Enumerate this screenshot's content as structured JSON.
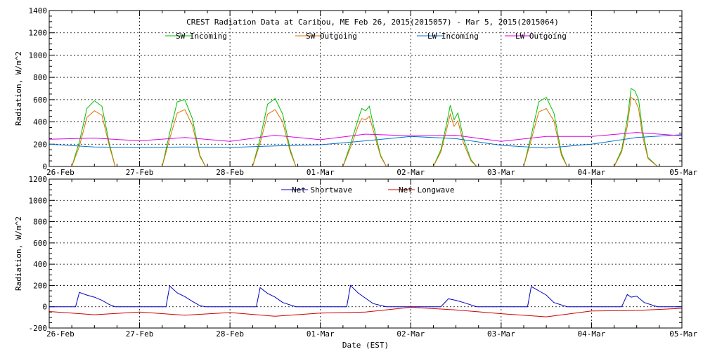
{
  "figure": {
    "title": "CREST Radiation Data at Caribou, ME   Feb 26, 2015(2015057) - Mar  5, 2015(2015064)",
    "xlabel": "Date (EST)"
  },
  "chart_data": [
    {
      "type": "line",
      "title": "CREST Radiation Data at Caribou, ME   Feb 26, 2015(2015057) - Mar  5, 2015(2015064)",
      "ylabel": "Radiation, W/m^2",
      "xlabel": "",
      "ylim": [
        0,
        1400
      ],
      "yticks": [
        0,
        200,
        400,
        600,
        800,
        1000,
        1200,
        1400
      ],
      "xlim": [
        "2015-02-26T00:00",
        "2015-03-05T00:00"
      ],
      "xticks": [
        "26-Feb",
        "27-Feb",
        "28-Feb",
        "01-Mar",
        "02-Mar",
        "03-Mar",
        "04-Mar",
        "05-Mar"
      ],
      "grid": true,
      "legend": "top",
      "series": [
        {
          "name": "SW Incoming",
          "color": "#00c000",
          "x": [
            "2015-02-26T00:00",
            "2015-02-26T06:00",
            "2015-02-26T08:00",
            "2015-02-26T10:00",
            "2015-02-26T12:00",
            "2015-02-26T14:00",
            "2015-02-26T16:00",
            "2015-02-26T17:30",
            "2015-02-27T06:00",
            "2015-02-27T08:00",
            "2015-02-27T10:00",
            "2015-02-27T12:00",
            "2015-02-27T14:00",
            "2015-02-27T16:00",
            "2015-02-27T17:30",
            "2015-02-28T06:00",
            "2015-02-28T08:00",
            "2015-02-28T10:00",
            "2015-02-28T12:00",
            "2015-02-28T14:00",
            "2015-02-28T16:00",
            "2015-02-28T17:30",
            "2015-03-01T06:00",
            "2015-03-01T08:00",
            "2015-03-01T10:00",
            "2015-03-01T11:00",
            "2015-03-01T12:00",
            "2015-03-01T13:00",
            "2015-03-01T14:00",
            "2015-03-01T16:00",
            "2015-03-01T17:30",
            "2015-03-02T06:00",
            "2015-03-02T08:00",
            "2015-03-02T09:30",
            "2015-03-02T10:30",
            "2015-03-02T11:30",
            "2015-03-02T12:30",
            "2015-03-02T14:00",
            "2015-03-02T16:00",
            "2015-03-02T17:30",
            "2015-03-03T06:00",
            "2015-03-03T08:00",
            "2015-03-03T10:00",
            "2015-03-03T12:00",
            "2015-03-03T14:00",
            "2015-03-03T16:00",
            "2015-03-03T17:30",
            "2015-03-04T06:00",
            "2015-03-04T08:00",
            "2015-03-04T09:30",
            "2015-03-04T10:30",
            "2015-03-04T11:30",
            "2015-03-04T12:30",
            "2015-03-04T13:30",
            "2015-03-04T15:00",
            "2015-03-04T17:30",
            "2015-03-05T00:00"
          ],
          "y": [
            0,
            0,
            220,
            520,
            590,
            540,
            200,
            0,
            0,
            300,
            580,
            600,
            430,
            100,
            0,
            0,
            250,
            560,
            610,
            470,
            150,
            0,
            0,
            200,
            420,
            520,
            500,
            540,
            380,
            100,
            0,
            0,
            150,
            380,
            550,
            420,
            480,
            250,
            60,
            0,
            0,
            280,
            580,
            620,
            480,
            120,
            0,
            0,
            150,
            420,
            700,
            680,
            600,
            330,
            80,
            0,
            0
          ]
        },
        {
          "name": "SW Outgoing",
          "color": "#e07000",
          "x": [
            "2015-02-26T00:00",
            "2015-02-26T06:00",
            "2015-02-26T08:00",
            "2015-02-26T10:00",
            "2015-02-26T12:00",
            "2015-02-26T14:00",
            "2015-02-26T16:00",
            "2015-02-26T17:30",
            "2015-02-27T06:00",
            "2015-02-27T08:00",
            "2015-02-27T10:00",
            "2015-02-27T12:00",
            "2015-02-27T14:00",
            "2015-02-27T16:00",
            "2015-02-27T17:30",
            "2015-02-28T06:00",
            "2015-02-28T08:00",
            "2015-02-28T10:00",
            "2015-02-28T12:00",
            "2015-02-28T14:00",
            "2015-02-28T16:00",
            "2015-02-28T17:30",
            "2015-03-01T06:00",
            "2015-03-01T08:00",
            "2015-03-01T10:00",
            "2015-03-01T11:00",
            "2015-03-01T12:00",
            "2015-03-01T13:00",
            "2015-03-01T14:00",
            "2015-03-01T16:00",
            "2015-03-01T17:30",
            "2015-03-02T06:00",
            "2015-03-02T08:00",
            "2015-03-02T09:30",
            "2015-03-02T10:30",
            "2015-03-02T11:30",
            "2015-03-02T12:30",
            "2015-03-02T14:00",
            "2015-03-02T16:00",
            "2015-03-02T17:30",
            "2015-03-03T06:00",
            "2015-03-03T08:00",
            "2015-03-03T10:00",
            "2015-03-03T12:00",
            "2015-03-03T14:00",
            "2015-03-03T16:00",
            "2015-03-03T17:30",
            "2015-03-04T06:00",
            "2015-03-04T08:00",
            "2015-03-04T09:30",
            "2015-03-04T10:30",
            "2015-03-04T11:30",
            "2015-03-04T12:30",
            "2015-03-04T13:30",
            "2015-03-04T15:00",
            "2015-03-04T17:30",
            "2015-03-05T00:00"
          ],
          "y": [
            0,
            0,
            180,
            440,
            500,
            460,
            180,
            0,
            0,
            250,
            480,
            510,
            370,
            90,
            0,
            0,
            210,
            470,
            510,
            400,
            130,
            0,
            0,
            170,
            360,
            430,
            420,
            450,
            330,
            90,
            0,
            0,
            130,
            330,
            470,
            360,
            410,
            210,
            50,
            0,
            0,
            240,
            490,
            520,
            410,
            100,
            0,
            0,
            130,
            360,
            620,
            600,
            520,
            280,
            70,
            0,
            0
          ]
        },
        {
          "name": "LW Incoming",
          "color": "#0070d0",
          "x": [
            "2015-02-26T00:00",
            "2015-02-26T12:00",
            "2015-02-27T00:00",
            "2015-02-27T12:00",
            "2015-02-28T00:00",
            "2015-02-28T12:00",
            "2015-03-01T00:00",
            "2015-03-01T12:00",
            "2015-03-02T00:00",
            "2015-03-02T12:00",
            "2015-03-03T00:00",
            "2015-03-03T12:00",
            "2015-03-04T00:00",
            "2015-03-04T12:00",
            "2015-03-05T00:00"
          ],
          "y": [
            200,
            175,
            170,
            175,
            170,
            185,
            195,
            230,
            270,
            250,
            190,
            165,
            200,
            260,
            285
          ]
        },
        {
          "name": "LW Outgoing",
          "color": "#e000e0",
          "x": [
            "2015-02-26T00:00",
            "2015-02-26T12:00",
            "2015-02-27T00:00",
            "2015-02-27T12:00",
            "2015-02-28T00:00",
            "2015-02-28T12:00",
            "2015-03-01T00:00",
            "2015-03-01T12:00",
            "2015-03-02T00:00",
            "2015-03-02T12:00",
            "2015-03-03T00:00",
            "2015-03-03T12:00",
            "2015-03-04T00:00",
            "2015-03-04T12:00",
            "2015-03-05T00:00"
          ],
          "y": [
            245,
            255,
            230,
            260,
            225,
            280,
            240,
            290,
            275,
            280,
            225,
            270,
            270,
            305,
            275
          ]
        }
      ]
    },
    {
      "type": "line",
      "title": "",
      "ylabel": "Radiation, W/m^2",
      "xlabel": "Date (EST)",
      "ylim": [
        -200,
        1200
      ],
      "yticks": [
        -200,
        0,
        200,
        400,
        600,
        800,
        1000,
        1200
      ],
      "xlim": [
        "2015-02-26T00:00",
        "2015-03-05T00:00"
      ],
      "xticks": [
        "26-Feb",
        "27-Feb",
        "28-Feb",
        "01-Mar",
        "02-Mar",
        "03-Mar",
        "04-Mar",
        "05-Mar"
      ],
      "grid": true,
      "legend": "top",
      "series": [
        {
          "name": "Net Shortwave",
          "color": "#0000c0",
          "x": [
            "2015-02-26T00:00",
            "2015-02-26T07:00",
            "2015-02-26T08:00",
            "2015-02-26T10:00",
            "2015-02-26T12:00",
            "2015-02-26T14:00",
            "2015-02-26T16:00",
            "2015-02-26T17:30",
            "2015-02-27T07:00",
            "2015-02-27T08:00",
            "2015-02-27T10:00",
            "2015-02-27T12:00",
            "2015-02-27T14:00",
            "2015-02-27T16:00",
            "2015-02-27T17:30",
            "2015-02-28T07:00",
            "2015-02-28T08:00",
            "2015-02-28T10:00",
            "2015-02-28T12:00",
            "2015-02-28T14:00",
            "2015-02-28T17:30",
            "2015-03-01T07:00",
            "2015-03-01T08:00",
            "2015-03-01T10:00",
            "2015-03-01T12:00",
            "2015-03-01T14:00",
            "2015-03-01T17:30",
            "2015-03-02T08:00",
            "2015-03-02T10:00",
            "2015-03-02T12:00",
            "2015-03-02T14:00",
            "2015-03-02T17:30",
            "2015-03-03T07:00",
            "2015-03-03T08:00",
            "2015-03-03T10:00",
            "2015-03-03T12:00",
            "2015-03-03T14:00",
            "2015-03-03T17:30",
            "2015-03-04T08:00",
            "2015-03-04T09:30",
            "2015-03-04T10:30",
            "2015-03-04T12:00",
            "2015-03-04T14:00",
            "2015-03-04T17:30",
            "2015-03-05T00:00"
          ],
          "y": [
            0,
            0,
            135,
            110,
            90,
            60,
            20,
            0,
            0,
            195,
            130,
            95,
            50,
            10,
            0,
            0,
            180,
            125,
            90,
            40,
            0,
            0,
            200,
            130,
            80,
            30,
            0,
            0,
            75,
            60,
            40,
            0,
            0,
            190,
            150,
            110,
            40,
            0,
            0,
            115,
            90,
            100,
            40,
            0,
            0
          ]
        },
        {
          "name": "Net Longwave",
          "color": "#d00000",
          "x": [
            "2015-02-26T00:00",
            "2015-02-26T12:00",
            "2015-02-27T00:00",
            "2015-02-27T12:00",
            "2015-02-28T00:00",
            "2015-02-28T12:00",
            "2015-03-01T00:00",
            "2015-03-01T12:00",
            "2015-03-02T00:00",
            "2015-03-02T12:00",
            "2015-03-03T00:00",
            "2015-03-03T12:00",
            "2015-03-04T00:00",
            "2015-03-04T12:00",
            "2015-03-05T00:00"
          ],
          "y": [
            -45,
            -75,
            -50,
            -80,
            -55,
            -90,
            -60,
            -50,
            -5,
            -30,
            -65,
            -95,
            -40,
            -35,
            -15
          ]
        }
      ]
    }
  ]
}
